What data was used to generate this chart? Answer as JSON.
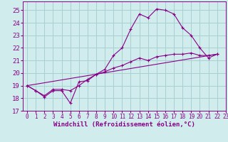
{
  "background_color": "#d0ecec",
  "grid_color": "#a8d0d0",
  "line_color": "#880088",
  "xlabel": "Windchill (Refroidissement éolien,°C)",
  "xlabel_fontsize": 6.5,
  "ytick_fontsize": 6.5,
  "xtick_fontsize": 5.5,
  "xlim": [
    -0.5,
    23
  ],
  "ylim": [
    17,
    25.7
  ],
  "yticks": [
    17,
    18,
    19,
    20,
    21,
    22,
    23,
    24,
    25
  ],
  "xticks": [
    0,
    1,
    2,
    3,
    4,
    5,
    6,
    7,
    8,
    9,
    10,
    11,
    12,
    13,
    14,
    15,
    16,
    17,
    18,
    19,
    20,
    21,
    22,
    23
  ],
  "series1_x": [
    0,
    1,
    2,
    3,
    4,
    5,
    6,
    7,
    8,
    9,
    10,
    11,
    12,
    13,
    14,
    15,
    16,
    17,
    18,
    19,
    20,
    21,
    22
  ],
  "series1_y": [
    19.0,
    18.6,
    18.1,
    18.6,
    18.6,
    17.6,
    19.3,
    19.4,
    19.9,
    20.3,
    21.4,
    22.0,
    23.5,
    24.7,
    24.4,
    25.1,
    25.0,
    24.7,
    23.6,
    23.0,
    22.0,
    21.2,
    21.5
  ],
  "series2_x": [
    0,
    1,
    2,
    3,
    4,
    5,
    6,
    7,
    8,
    9,
    10,
    11,
    12,
    13,
    14,
    15,
    16,
    17,
    18,
    19,
    20,
    21,
    22
  ],
  "series2_y": [
    19.0,
    18.6,
    18.2,
    18.7,
    18.7,
    18.6,
    19.0,
    19.5,
    19.9,
    20.1,
    20.4,
    20.6,
    20.9,
    21.2,
    21.0,
    21.3,
    21.4,
    21.5,
    21.5,
    21.6,
    21.4,
    21.4,
    21.5
  ],
  "series3_x": [
    0,
    22
  ],
  "series3_y": [
    19.0,
    21.5
  ]
}
